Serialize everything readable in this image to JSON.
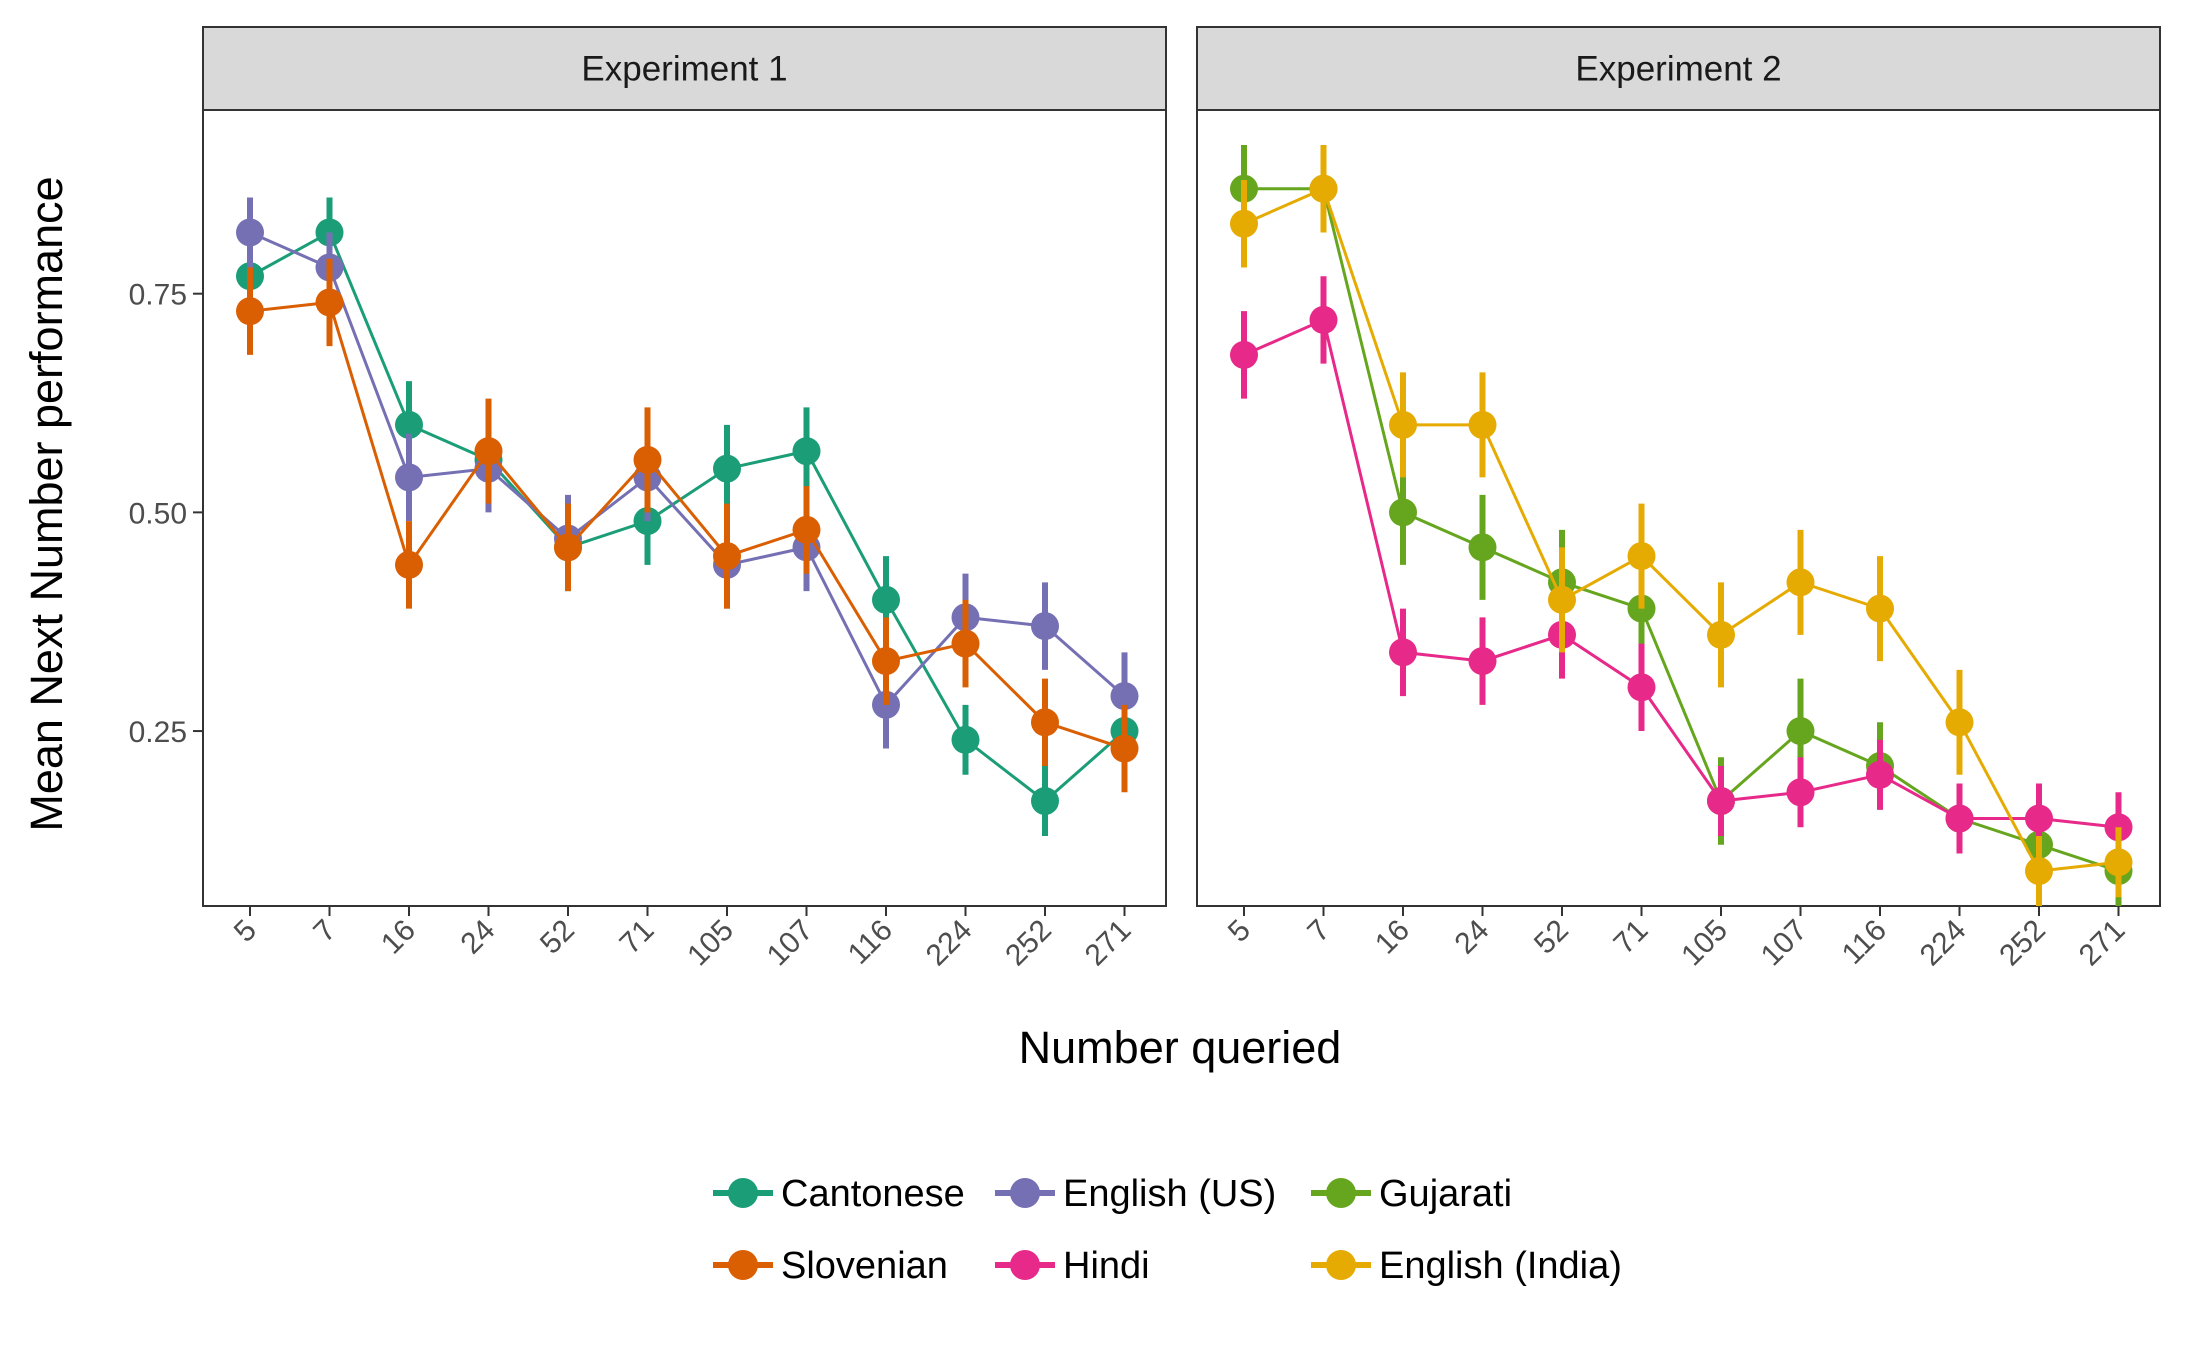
{
  "chart_data": {
    "type": "line",
    "xlabel": "Number queried",
    "ylabel": "Mean Next Number performance",
    "categories": [
      "5",
      "7",
      "16",
      "24",
      "52",
      "71",
      "105",
      "107",
      "116",
      "224",
      "252",
      "271"
    ],
    "y_ticks": [
      "0.25",
      "0.50",
      "0.75"
    ],
    "ylim": [
      0.05,
      0.96
    ],
    "error_bars": true,
    "grid": false,
    "legend_position": "bottom",
    "panels": [
      {
        "title": "Experiment 1",
        "series": [
          {
            "name": "Cantonese",
            "color": "#1b9e77",
            "values": [
              0.77,
              0.82,
              0.6,
              0.56,
              0.46,
              0.49,
              0.55,
              0.57,
              0.4,
              0.24,
              0.17,
              0.25
            ],
            "errors": [
              0.04,
              0.04,
              0.05,
              0.05,
              0.05,
              0.05,
              0.05,
              0.05,
              0.05,
              0.04,
              0.04,
              0.04
            ]
          },
          {
            "name": "English (US)",
            "color": "#7570b3",
            "values": [
              0.82,
              0.78,
              0.54,
              0.55,
              0.47,
              0.54,
              0.44,
              0.46,
              0.28,
              0.38,
              0.37,
              0.29
            ],
            "errors": [
              0.04,
              0.04,
              0.05,
              0.05,
              0.05,
              0.05,
              0.05,
              0.05,
              0.05,
              0.05,
              0.05,
              0.05
            ]
          },
          {
            "name": "Slovenian",
            "color": "#d95f02",
            "values": [
              0.73,
              0.74,
              0.44,
              0.57,
              0.46,
              0.56,
              0.45,
              0.48,
              0.33,
              0.35,
              0.26,
              0.23
            ],
            "errors": [
              0.05,
              0.05,
              0.05,
              0.06,
              0.05,
              0.06,
              0.06,
              0.05,
              0.05,
              0.05,
              0.05,
              0.05
            ]
          }
        ]
      },
      {
        "title": "Experiment 2",
        "series": [
          {
            "name": "Gujarati",
            "color": "#66a61e",
            "values": [
              0.87,
              0.87,
              0.5,
              0.46,
              0.42,
              0.39,
              0.17,
              0.25,
              0.21,
              0.15,
              0.12,
              0.09
            ],
            "errors": [
              0.05,
              0.05,
              0.06,
              0.06,
              0.06,
              0.06,
              0.05,
              0.06,
              0.05,
              0.04,
              0.04,
              0.04
            ]
          },
          {
            "name": "Hindi",
            "color": "#e7298a",
            "values": [
              0.68,
              0.72,
              0.34,
              0.33,
              0.36,
              0.3,
              0.17,
              0.18,
              0.2,
              0.15,
              0.15,
              0.14
            ],
            "errors": [
              0.05,
              0.05,
              0.05,
              0.05,
              0.05,
              0.05,
              0.04,
              0.04,
              0.04,
              0.04,
              0.04,
              0.04
            ]
          },
          {
            "name": "English (India)",
            "color": "#e6ab02",
            "values": [
              0.83,
              0.87,
              0.6,
              0.6,
              0.4,
              0.45,
              0.36,
              0.42,
              0.39,
              0.26,
              0.09,
              0.1
            ],
            "errors": [
              0.05,
              0.05,
              0.06,
              0.06,
              0.06,
              0.06,
              0.06,
              0.06,
              0.06,
              0.06,
              0.04,
              0.04
            ]
          }
        ]
      }
    ],
    "legend": {
      "entries": [
        {
          "name": "Cantonese",
          "color": "#1b9e77"
        },
        {
          "name": "English (US)",
          "color": "#7570b3"
        },
        {
          "name": "Gujarati",
          "color": "#66a61e"
        },
        {
          "name": "Slovenian",
          "color": "#d95f02"
        },
        {
          "name": "Hindi",
          "color": "#e7298a"
        },
        {
          "name": "English (India)",
          "color": "#e6ab02"
        }
      ]
    }
  }
}
